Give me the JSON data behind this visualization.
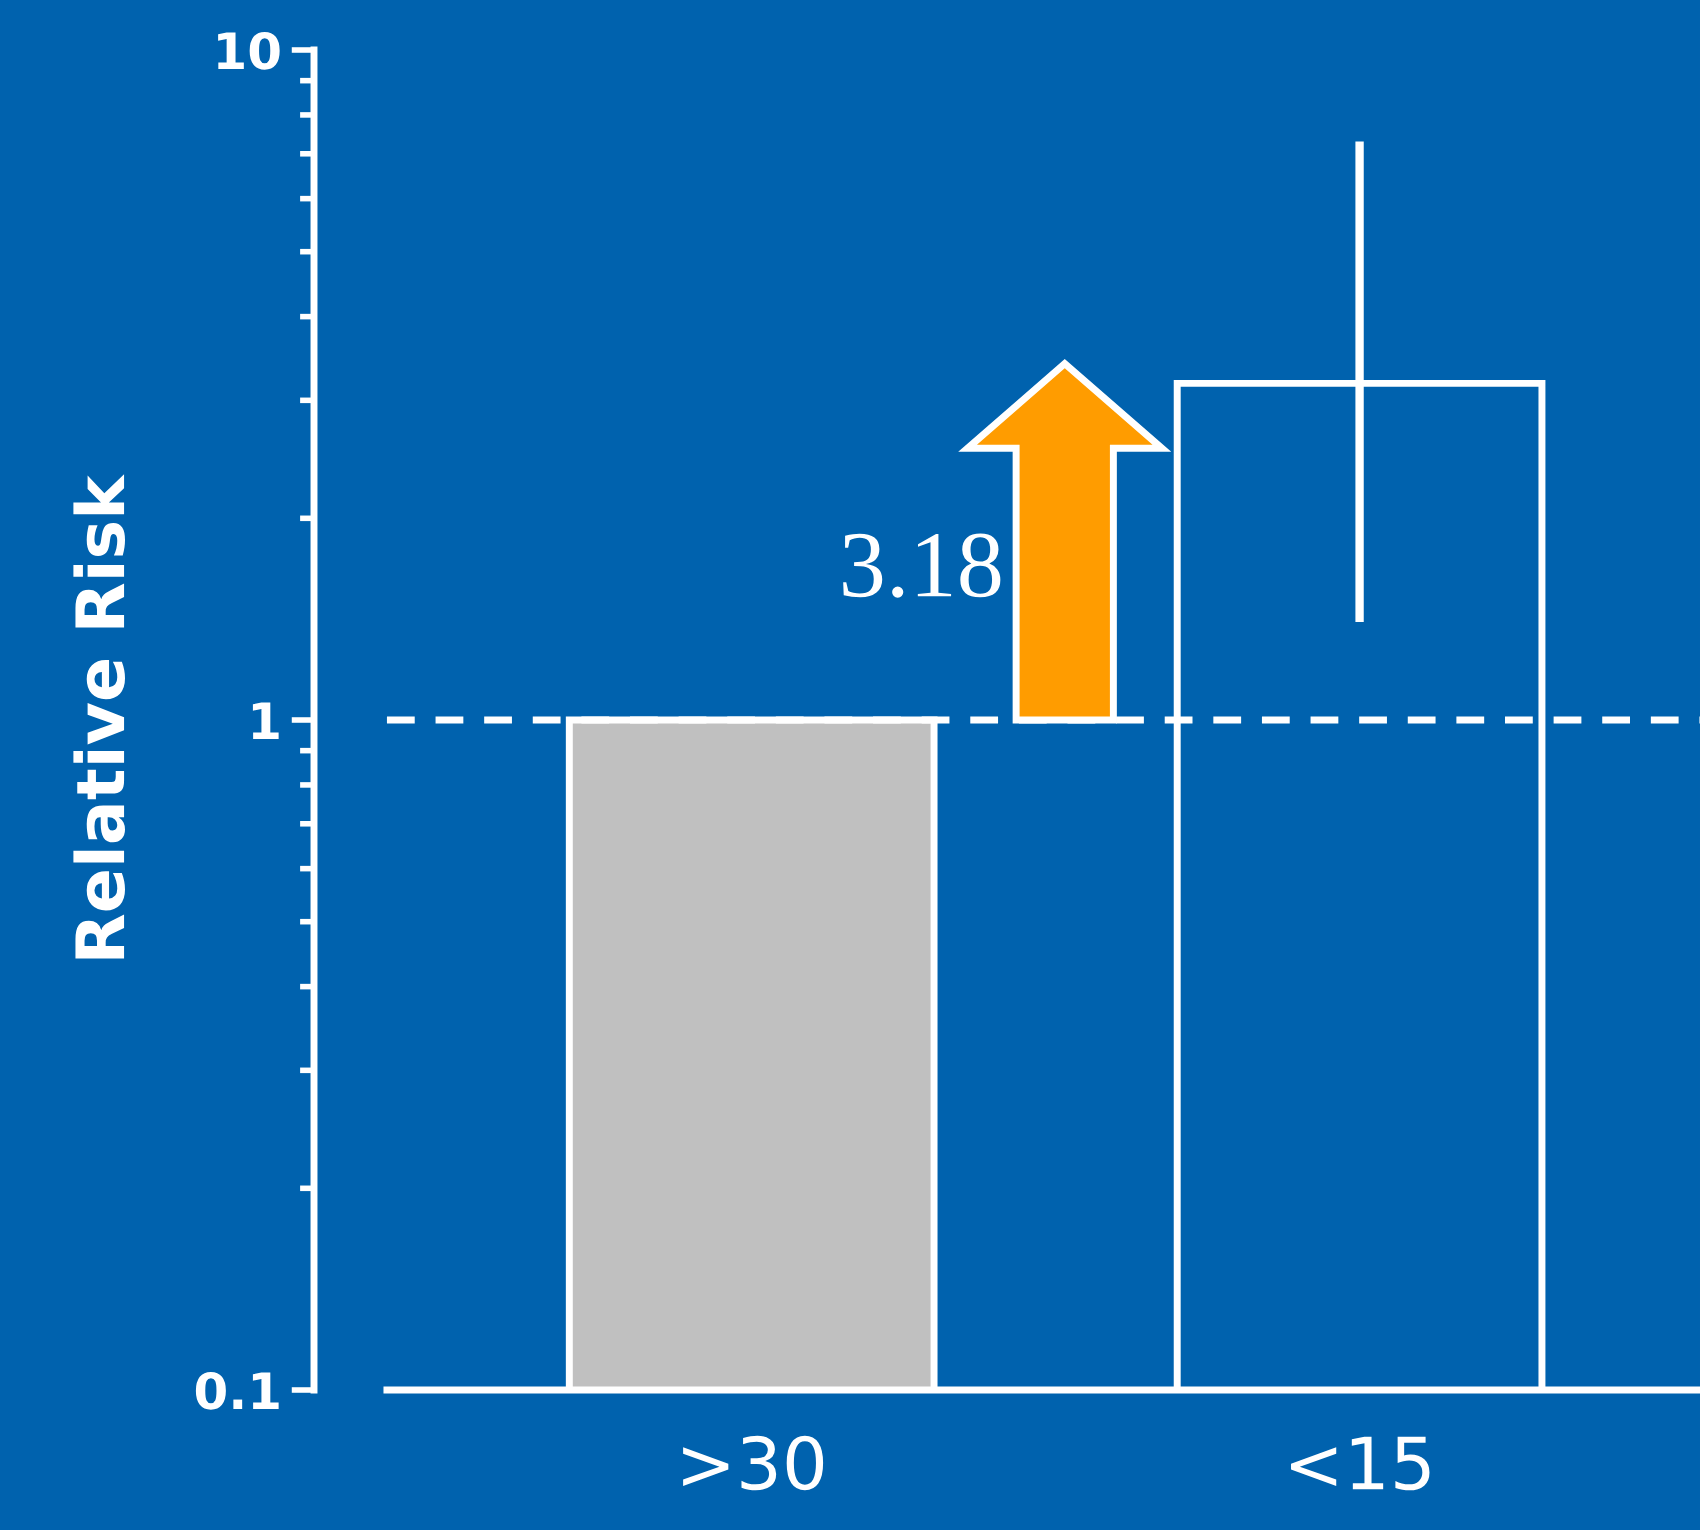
{
  "chart_data": {
    "type": "bar",
    "ylabel": "Relative Risk",
    "categories": [
      ">30",
      "<15"
    ],
    "series": [
      {
        "colors": [
          "#c0c0c0",
          "#0062ae"
        ],
        "values": [
          1,
          3.18
        ],
        "errors": [
          null,
          [
            1.4,
            7.3
          ]
        ]
      }
    ],
    "log": true,
    "ylim": [
      0.1,
      10
    ],
    "yticks": [
      0.1,
      1,
      10
    ],
    "ref_lines": [
      {
        "axis": "y",
        "value": 1,
        "color": "#ffffff",
        "line_style": "dashed"
      }
    ],
    "annotations": [
      "3.18"
    ],
    "grid": false,
    "legend": false
  }
}
